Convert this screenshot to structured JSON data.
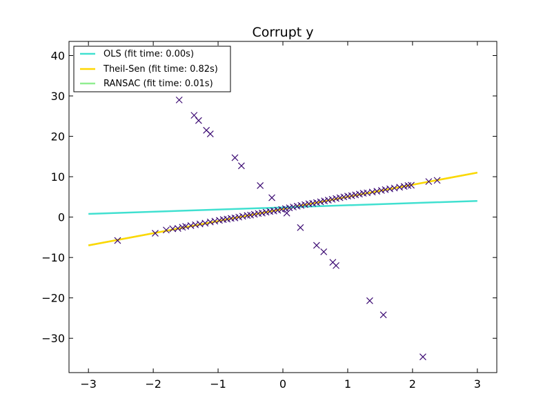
{
  "chart_data": {
    "type": "scatter",
    "title": "Corrupt y",
    "xlabel": "",
    "ylabel": "",
    "xlim": [
      -3.3,
      3.3
    ],
    "ylim": [
      -38.5,
      43.5
    ],
    "xticks": [
      -3,
      -2,
      -1,
      0,
      1,
      2,
      3
    ],
    "xtick_labels": [
      "−3",
      "−2",
      "−1",
      "0",
      "1",
      "2",
      "3"
    ],
    "yticks": [
      -30,
      -20,
      -10,
      0,
      10,
      20,
      30,
      40
    ],
    "ytick_labels": [
      "−30",
      "−20",
      "−10",
      "0",
      "10",
      "20",
      "30",
      "40"
    ],
    "grid": false,
    "legend_position": "top-left",
    "scatter": {
      "marker": "x",
      "color": "#3b0a72",
      "points": [
        [
          -2.55,
          -5.8
        ],
        [
          -1.97,
          -4.0
        ],
        [
          -1.8,
          -3.2
        ],
        [
          -1.7,
          -2.9
        ],
        [
          -1.62,
          -2.8
        ],
        [
          -1.55,
          -2.5
        ],
        [
          -1.5,
          -2.3
        ],
        [
          -1.42,
          -2.1
        ],
        [
          -1.35,
          -1.9
        ],
        [
          -1.28,
          -1.7
        ],
        [
          -1.2,
          -1.5
        ],
        [
          -1.12,
          -1.2
        ],
        [
          -1.05,
          -1.0
        ],
        [
          -0.98,
          -0.8
        ],
        [
          -0.92,
          -0.6
        ],
        [
          -0.86,
          -0.5
        ],
        [
          -0.8,
          -0.3
        ],
        [
          -0.74,
          -0.2
        ],
        [
          -0.68,
          0.0
        ],
        [
          -0.62,
          0.2
        ],
        [
          -0.55,
          0.4
        ],
        [
          -0.5,
          0.5
        ],
        [
          -0.44,
          0.7
        ],
        [
          -0.38,
          0.9
        ],
        [
          -0.32,
          1.0
        ],
        [
          -0.26,
          1.2
        ],
        [
          -0.2,
          1.4
        ],
        [
          -0.14,
          1.5
        ],
        [
          -0.08,
          1.7
        ],
        [
          -0.02,
          1.9
        ],
        [
          0.04,
          2.1
        ],
        [
          0.1,
          2.3
        ],
        [
          0.16,
          2.5
        ],
        [
          0.22,
          2.7
        ],
        [
          0.28,
          2.9
        ],
        [
          0.34,
          3.1
        ],
        [
          0.4,
          3.3
        ],
        [
          0.46,
          3.4
        ],
        [
          0.52,
          3.6
        ],
        [
          0.58,
          3.8
        ],
        [
          0.64,
          4.0
        ],
        [
          0.7,
          4.2
        ],
        [
          0.76,
          4.4
        ],
        [
          0.82,
          4.6
        ],
        [
          0.88,
          4.8
        ],
        [
          0.94,
          5.0
        ],
        [
          1.0,
          5.2
        ],
        [
          1.06,
          5.3
        ],
        [
          1.12,
          5.5
        ],
        [
          1.18,
          5.7
        ],
        [
          1.24,
          5.9
        ],
        [
          1.3,
          6.0
        ],
        [
          1.38,
          6.2
        ],
        [
          1.45,
          6.4
        ],
        [
          1.52,
          6.6
        ],
        [
          1.58,
          6.8
        ],
        [
          1.65,
          7.0
        ],
        [
          1.72,
          7.2
        ],
        [
          1.8,
          7.4
        ],
        [
          1.87,
          7.6
        ],
        [
          1.93,
          7.8
        ],
        [
          1.98,
          7.9
        ],
        [
          2.25,
          8.8
        ],
        [
          2.38,
          9.1
        ],
        [
          -1.6,
          29.0
        ],
        [
          -1.37,
          25.2
        ],
        [
          -1.3,
          23.9
        ],
        [
          -1.18,
          21.5
        ],
        [
          -1.12,
          20.6
        ],
        [
          -0.74,
          14.7
        ],
        [
          -0.64,
          12.7
        ],
        [
          -0.35,
          7.8
        ],
        [
          -0.17,
          4.8
        ],
        [
          0.06,
          1.0
        ],
        [
          0.27,
          -2.6
        ],
        [
          0.52,
          -7.0
        ],
        [
          0.63,
          -8.6
        ],
        [
          0.77,
          -11.2
        ],
        [
          0.82,
          -12.0
        ],
        [
          1.34,
          -20.7
        ],
        [
          1.55,
          -24.2
        ],
        [
          2.16,
          -34.6
        ]
      ]
    },
    "series": [
      {
        "name": "OLS (fit time: 0.00s)",
        "color": "#40e0d0",
        "x": [
          -3,
          3
        ],
        "y": [
          0.8,
          4.0
        ]
      },
      {
        "name": "Theil-Sen (fit time: 0.82s)",
        "color": "#ffd700",
        "x": [
          -3,
          3
        ],
        "y": [
          -7.0,
          11.0
        ]
      },
      {
        "name": "RANSAC (fit time: 0.01s)",
        "color": "#90ee90",
        "x": [
          -3,
          3
        ],
        "y": [
          -7.0,
          11.0
        ]
      }
    ]
  }
}
